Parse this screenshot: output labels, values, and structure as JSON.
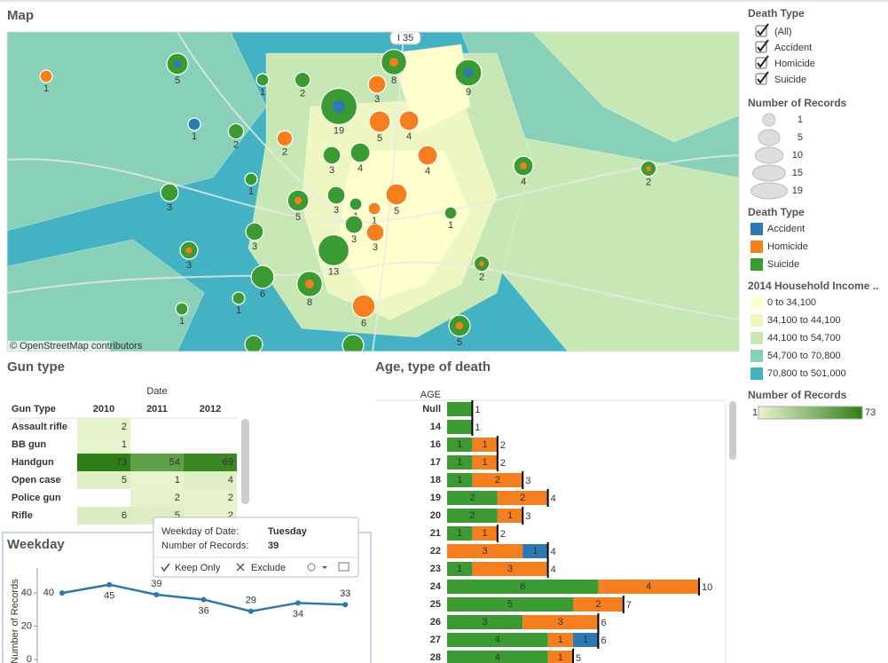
{
  "dashboard": {
    "map": {
      "title": "Map",
      "road_label": "I 35",
      "attribution": "© OpenStreetMap contributors",
      "bubbles": [
        {
          "count": 1,
          "type": "Homicide"
        },
        {
          "count": 5,
          "type": "Suicide",
          "inner": "Accident"
        },
        {
          "count": 1,
          "type": "Suicide"
        },
        {
          "count": 2,
          "type": "Suicide"
        },
        {
          "count": 19,
          "type": "Suicide",
          "inner": "Accident"
        },
        {
          "count": 8,
          "type": "Suicide",
          "inner": "Homicide"
        },
        {
          "count": 3,
          "type": "Homicide"
        },
        {
          "count": 9,
          "type": "Suicide",
          "inner": "Accident"
        },
        {
          "count": 1,
          "type": "Accident"
        },
        {
          "count": 2,
          "type": "Suicide"
        },
        {
          "count": 2,
          "type": "Homicide"
        },
        {
          "count": 5,
          "type": "Homicide"
        },
        {
          "count": 4,
          "type": "Homicide"
        },
        {
          "count": 3,
          "type": "Suicide"
        },
        {
          "count": 4,
          "type": "Suicide"
        },
        {
          "count": 4,
          "type": "Homicide"
        },
        {
          "count": 4,
          "type": "Suicide",
          "inner": "Homicide"
        },
        {
          "count": 2,
          "type": "Suicide",
          "inner": "Homicide"
        },
        {
          "count": 1,
          "type": "Suicide"
        },
        {
          "count": 3,
          "type": "Suicide"
        },
        {
          "count": 5,
          "type": "Suicide",
          "inner": "Homicide"
        },
        {
          "count": 3,
          "type": "Suicide"
        },
        {
          "count": 1,
          "type": "Suicide"
        },
        {
          "count": 1,
          "type": "Homicide"
        },
        {
          "count": 5,
          "type": "Homicide"
        },
        {
          "count": 1,
          "type": "Suicide"
        },
        {
          "count": 3,
          "type": "Suicide"
        },
        {
          "count": 3,
          "type": "Suicide",
          "inner": "Homicide"
        },
        {
          "count": 3,
          "type": "Suicide"
        },
        {
          "count": 3,
          "type": "Homicide"
        },
        {
          "count": 13,
          "type": "Suicide"
        },
        {
          "count": 2,
          "type": "Suicide",
          "inner": "Homicide"
        },
        {
          "count": 6,
          "type": "Suicide"
        },
        {
          "count": 8,
          "type": "Suicide",
          "inner": "Homicide"
        },
        {
          "count": 6,
          "type": "Homicide"
        },
        {
          "count": 1,
          "type": "Suicide"
        },
        {
          "count": 1,
          "type": "Suicide"
        },
        {
          "count": 5,
          "type": "Suicide",
          "inner": "Homicide"
        },
        {
          "count": 3,
          "type": "Suicide"
        },
        {
          "count": 5,
          "type": "Suicide"
        }
      ]
    },
    "filters": {
      "title": "Death Type",
      "options": [
        "(All)",
        "Accident",
        "Homicide",
        "Suicide"
      ],
      "checked": [
        true,
        true,
        true,
        true
      ]
    },
    "size_legend": {
      "title": "Number of Records",
      "values": [
        1,
        5,
        10,
        15,
        19
      ]
    },
    "color_legend": {
      "title": "Death Type",
      "items": [
        {
          "name": "Accident",
          "color": "#2b78b4"
        },
        {
          "name": "Homicide",
          "color": "#f57e1e"
        },
        {
          "name": "Suicide",
          "color": "#3b9a32"
        }
      ]
    },
    "income_legend": {
      "title": "2014 Household Income ..",
      "items": [
        {
          "label": "0 to 34,100",
          "color": "#ffffcc"
        },
        {
          "label": "34,100 to 44,100",
          "color": "#eef7c2"
        },
        {
          "label": "44,100 to 54,700",
          "color": "#c7e7b4"
        },
        {
          "label": "54,700 to 70,800",
          "color": "#89d0b8"
        },
        {
          "label": "70,800 to 501,000",
          "color": "#43b3c3"
        }
      ]
    },
    "records_legend": {
      "title": "Number of Records",
      "min": 1,
      "max": 73,
      "colors": [
        "#e8f4cc",
        "#2f7f18"
      ]
    },
    "gun_table": {
      "title": "Gun type",
      "column_group": "Date",
      "row_header": "Gun Type",
      "columns": [
        "2010",
        "2011",
        "2012"
      ],
      "rows": [
        {
          "name": "Assault rifle",
          "values": [
            2,
            null,
            null
          ]
        },
        {
          "name": "BB gun",
          "values": [
            1,
            null,
            null
          ]
        },
        {
          "name": "Handgun",
          "values": [
            73,
            54,
            69
          ]
        },
        {
          "name": "Open case",
          "values": [
            5,
            1,
            4
          ]
        },
        {
          "name": "Police gun",
          "values": [
            null,
            2,
            2
          ]
        },
        {
          "name": "Rifle",
          "values": [
            6,
            5,
            2
          ]
        }
      ]
    },
    "weekday_chart": {
      "type": "line",
      "title": "Weekday",
      "y_label": "Number of Records",
      "values": [
        40,
        45,
        39,
        36,
        29,
        34,
        33
      ],
      "ylim": [
        0,
        55
      ],
      "yticks": [
        0,
        20,
        40
      ],
      "color": "#2f77a8"
    },
    "tooltip": {
      "field1": "Weekday of Date:",
      "value1": "Tuesday",
      "field2": "Number of Records:",
      "value2": 39,
      "actions": [
        "Keep Only",
        "Exclude"
      ]
    },
    "age_chart": {
      "type": "stacked-bar",
      "title": "Age, type of death",
      "axis_label": "AGE",
      "rows": [
        {
          "age": "Null",
          "segments": {
            "Suicide": 1
          },
          "total": 1
        },
        {
          "age": "14",
          "segments": {
            "Suicide": 1
          },
          "total": 1
        },
        {
          "age": "16",
          "segments": {
            "Suicide": 1,
            "Homicide": 1
          },
          "total": 2
        },
        {
          "age": "17",
          "segments": {
            "Suicide": 1,
            "Homicide": 1
          },
          "total": 2
        },
        {
          "age": "18",
          "segments": {
            "Suicide": 1,
            "Homicide": 2
          },
          "total": 3
        },
        {
          "age": "19",
          "segments": {
            "Suicide": 2,
            "Homicide": 2
          },
          "total": 4
        },
        {
          "age": "20",
          "segments": {
            "Suicide": 2,
            "Homicide": 1
          },
          "total": 3
        },
        {
          "age": "21",
          "segments": {
            "Suicide": 1,
            "Homicide": 1
          },
          "total": 2
        },
        {
          "age": "22",
          "segments": {
            "Homicide": 3,
            "Accident": 1
          },
          "total": 4
        },
        {
          "age": "23",
          "segments": {
            "Suicide": 1,
            "Homicide": 3
          },
          "total": 4
        },
        {
          "age": "24",
          "segments": {
            "Suicide": 6,
            "Homicide": 4
          },
          "total": 10
        },
        {
          "age": "25",
          "segments": {
            "Suicide": 5,
            "Homicide": 2
          },
          "total": 7
        },
        {
          "age": "26",
          "segments": {
            "Suicide": 3,
            "Homicide": 3
          },
          "total": 6
        },
        {
          "age": "27",
          "segments": {
            "Suicide": 4,
            "Homicide": 1,
            "Accident": 1
          },
          "total": 6
        },
        {
          "age": "28",
          "segments": {
            "Suicide": 4,
            "Homicide": 1
          },
          "total": 5
        }
      ]
    }
  }
}
